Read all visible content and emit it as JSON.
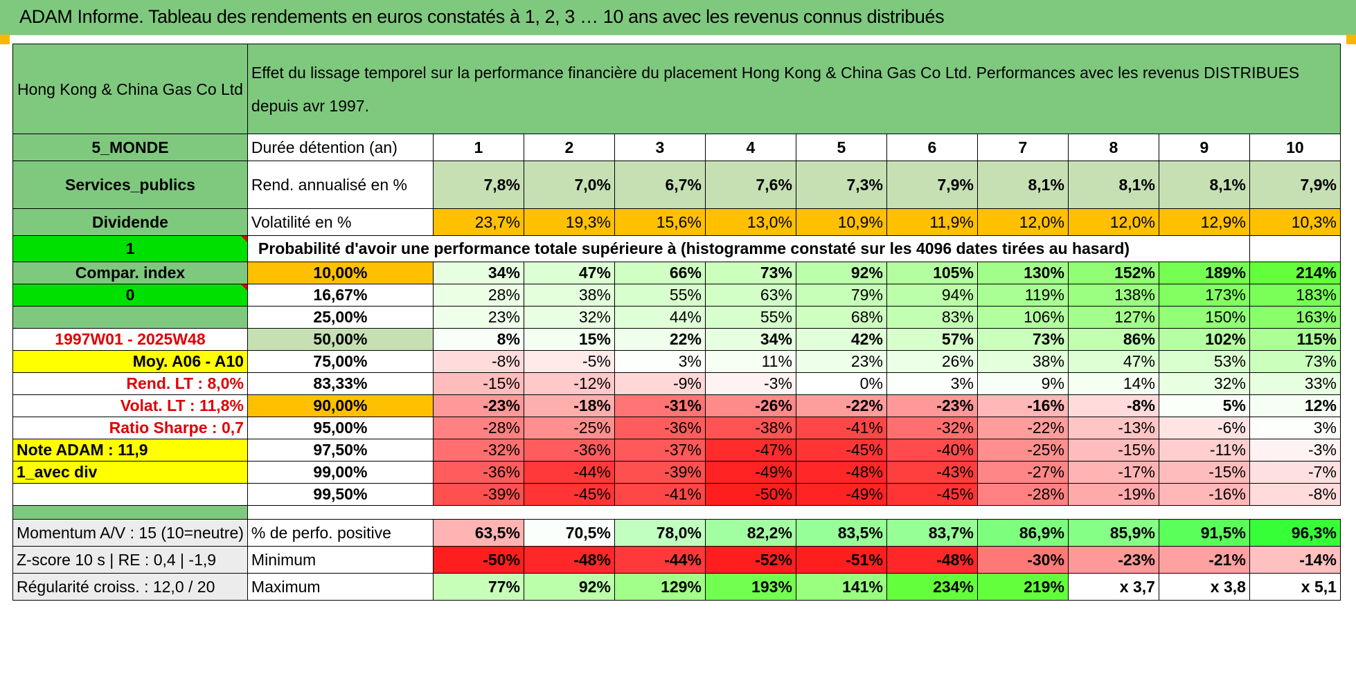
{
  "title": "ADAM Informe. Tableau des rendements en euros constatés à 1, 2, 3 … 10 ans avec les revenus connus distribués",
  "header": {
    "company": "Hong Kong & China Gas Co Ltd",
    "description": "Effet du lissage temporel sur la performance financière du placement Hong Kong & China Gas Co Ltd. Performances avec les revenus DISTRIBUES depuis avr 1997."
  },
  "left": {
    "region": "5_MONDE",
    "sector": "Services_publics",
    "type": "Dividende",
    "flag1": "1",
    "compar": "Compar. index",
    "flag0": "0",
    "period": "1997W01 - 2025W48",
    "moy": "Moy. A06 - A10",
    "rend_lt": "Rend. LT :    8,0%",
    "volat_lt": "Volat. LT :    11,8%",
    "sharpe": "Ratio Sharpe :    0,7",
    "note": "Note ADAM : 11,9",
    "avec_div": "1_avec div"
  },
  "labels": {
    "duree": "Durée détention (an)",
    "rend": "Rend. annualisé en %",
    "vol": "Volatilité en %",
    "proba": "Probabilité d'avoir une performance totale supérieure à (histogramme constaté sur les 4096 dates tirées au hasard)",
    "pos": "% de perfo. positive",
    "min": "Minimum",
    "max": "Maximum"
  },
  "years": [
    "1",
    "2",
    "3",
    "4",
    "5",
    "6",
    "7",
    "8",
    "9",
    "10"
  ],
  "rend": [
    "7,8%",
    "7,0%",
    "6,7%",
    "7,6%",
    "7,3%",
    "7,9%",
    "8,1%",
    "8,1%",
    "8,1%",
    "7,9%"
  ],
  "vol": [
    "23,7%",
    "19,3%",
    "15,6%",
    "13,0%",
    "10,9%",
    "11,9%",
    "12,0%",
    "12,0%",
    "12,9%",
    "10,3%"
  ],
  "pct_rows": [
    {
      "p": "10,00%",
      "v": [
        "34%",
        "47%",
        "66%",
        "73%",
        "92%",
        "105%",
        "130%",
        "152%",
        "189%",
        "214%"
      ]
    },
    {
      "p": "16,67%",
      "v": [
        "28%",
        "38%",
        "55%",
        "63%",
        "79%",
        "94%",
        "119%",
        "138%",
        "173%",
        "183%"
      ]
    },
    {
      "p": "25,00%",
      "v": [
        "23%",
        "32%",
        "44%",
        "55%",
        "68%",
        "83%",
        "106%",
        "127%",
        "150%",
        "163%"
      ]
    },
    {
      "p": "50,00%",
      "v": [
        "8%",
        "15%",
        "22%",
        "34%",
        "42%",
        "57%",
        "73%",
        "86%",
        "102%",
        "115%"
      ]
    },
    {
      "p": "75,00%",
      "v": [
        "-8%",
        "-5%",
        "3%",
        "11%",
        "23%",
        "26%",
        "38%",
        "47%",
        "53%",
        "73%"
      ]
    },
    {
      "p": "83,33%",
      "v": [
        "-15%",
        "-12%",
        "-9%",
        "-3%",
        "0%",
        "3%",
        "9%",
        "14%",
        "32%",
        "33%"
      ]
    },
    {
      "p": "90,00%",
      "v": [
        "-23%",
        "-18%",
        "-31%",
        "-26%",
        "-22%",
        "-23%",
        "-16%",
        "-8%",
        "5%",
        "12%"
      ]
    },
    {
      "p": "95,00%",
      "v": [
        "-28%",
        "-25%",
        "-36%",
        "-38%",
        "-41%",
        "-32%",
        "-22%",
        "-13%",
        "-6%",
        "3%"
      ]
    },
    {
      "p": "97,50%",
      "v": [
        "-32%",
        "-36%",
        "-37%",
        "-47%",
        "-45%",
        "-40%",
        "-25%",
        "-15%",
        "-11%",
        "-3%"
      ]
    },
    {
      "p": "99,00%",
      "v": [
        "-36%",
        "-44%",
        "-39%",
        "-49%",
        "-48%",
        "-43%",
        "-27%",
        "-17%",
        "-15%",
        "-7%"
      ]
    },
    {
      "p": "99,50%",
      "v": [
        "-39%",
        "-45%",
        "-41%",
        "-50%",
        "-49%",
        "-45%",
        "-28%",
        "-19%",
        "-16%",
        "-8%"
      ]
    }
  ],
  "bottom": {
    "momentum": "Momentum A/V : 15 (10=neutre)",
    "zscore": "Z-score 10 s | RE : 0,4 | -1,9",
    "regul": "Régularité croiss. : 12,0 / 20",
    "pos": [
      "63,5%",
      "70,5%",
      "78,0%",
      "82,2%",
      "83,5%",
      "83,7%",
      "86,9%",
      "85,9%",
      "91,5%",
      "96,3%"
    ],
    "min": [
      "-50%",
      "-48%",
      "-44%",
      "-52%",
      "-51%",
      "-48%",
      "-30%",
      "-23%",
      "-21%",
      "-14%"
    ],
    "max": [
      "77%",
      "92%",
      "129%",
      "193%",
      "141%",
      "234%",
      "219%",
      "x 3,7",
      "x 3,8",
      "x 5,1"
    ]
  },
  "colors": {
    "header_green": "#7fc97f",
    "bright_green": "#00e000",
    "orange": "#ffc000",
    "yellow": "#ffff00",
    "red_text": "#e00000"
  }
}
